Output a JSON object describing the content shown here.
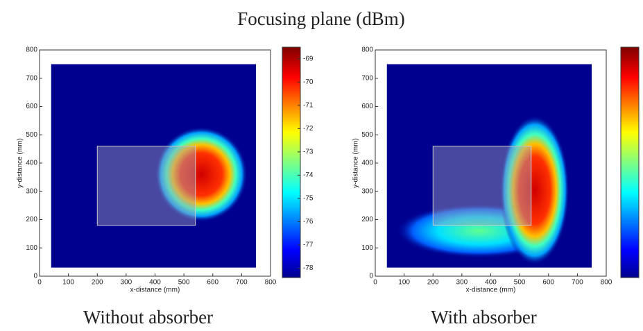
{
  "title": "Focusing plane (dBm)",
  "chart_data": [
    {
      "type": "heatmap",
      "caption": "Without absorber",
      "xlabel": "x-distance (mm)",
      "ylabel": "y-distance (mm)",
      "xlim": [
        0,
        800
      ],
      "xticks": [
        0,
        100,
        200,
        300,
        400,
        500,
        600,
        700,
        800
      ],
      "ylim": [
        0,
        800
      ],
      "yticks": [
        0,
        100,
        200,
        300,
        400,
        500,
        600,
        700,
        800
      ],
      "clim": [
        -78.4,
        -68.5
      ],
      "cticks": [
        -69,
        -70,
        -71,
        -72,
        -73,
        -74,
        -75,
        -76,
        -77,
        -78
      ]
    },
    {
      "type": "heatmap",
      "caption": "With absorber",
      "xlabel": "x-distance (mm)",
      "ylabel": "y-distance (mm)",
      "xlim": [
        0,
        800
      ],
      "xticks": [
        0,
        100,
        200,
        300,
        400,
        500,
        600,
        700,
        800
      ],
      "ylim": [
        0,
        800
      ],
      "yticks": [
        0,
        100,
        200,
        300,
        400,
        500,
        600,
        700,
        800
      ]
    }
  ]
}
